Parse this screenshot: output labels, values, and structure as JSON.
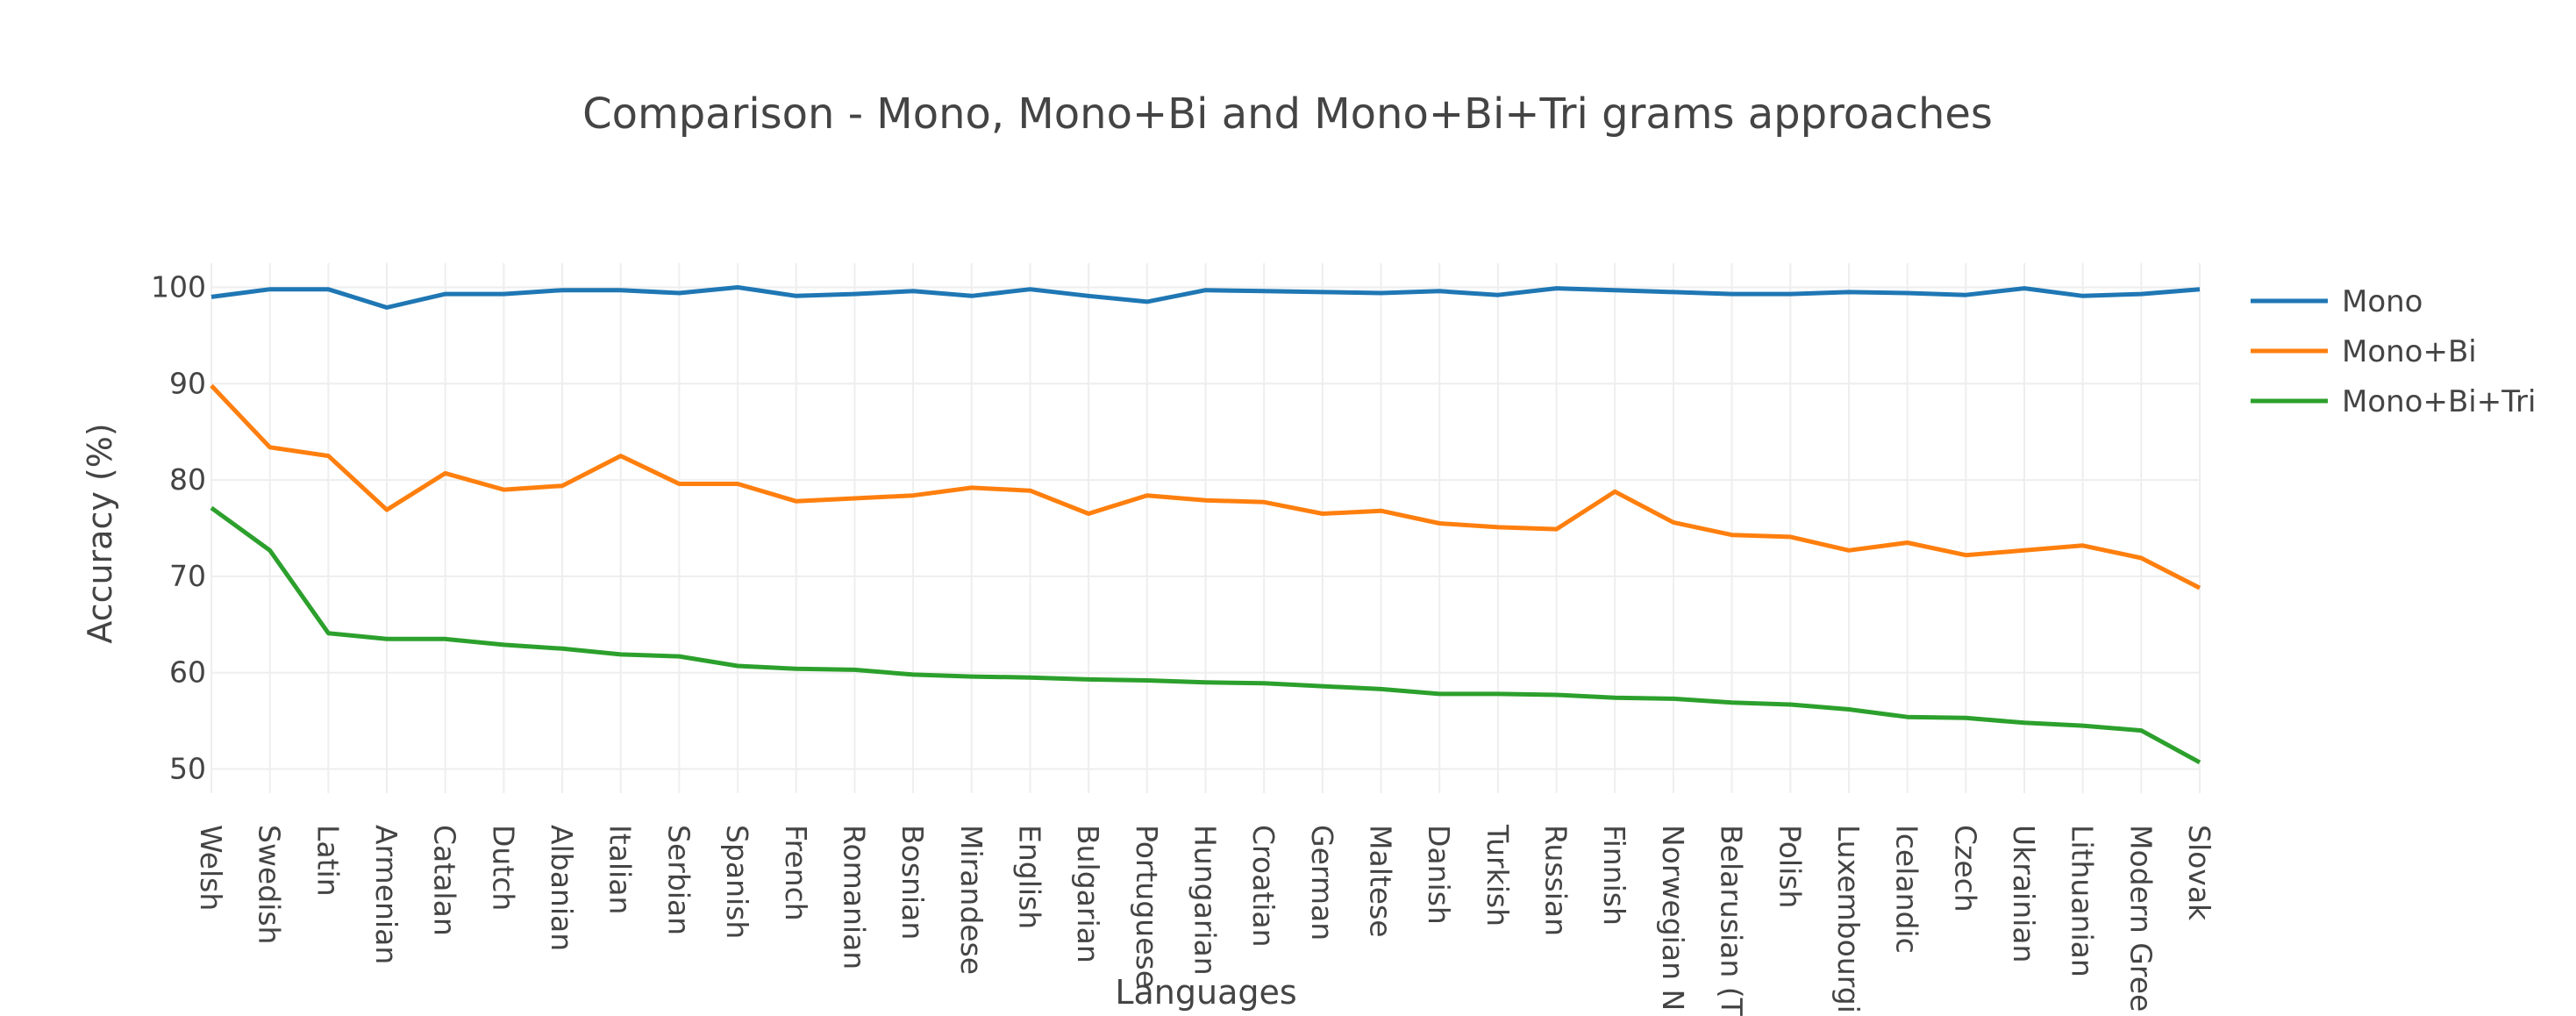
{
  "chart_data": {
    "type": "line",
    "title": "Comparison - Mono, Mono+Bi and Mono+Bi+Tri grams approaches",
    "xlabel": "Languages",
    "ylabel": "Accuracy (%)",
    "ylim": [
      47.5,
      102.5
    ],
    "yticks": [
      50,
      60,
      70,
      80,
      90,
      100
    ],
    "grid": true,
    "legend_position": "top-right",
    "categories": [
      "Welsh",
      "Swedish",
      "Latin",
      "Armenian",
      "Catalan",
      "Dutch",
      "Albanian",
      "Italian",
      "Serbian",
      "Spanish",
      "French",
      "Romanian",
      "Bosnian",
      "Mirandese",
      "English",
      "Bulgarian",
      "Portuguese",
      "Hungarian",
      "Croatian",
      "German",
      "Maltese",
      "Danish",
      "Turkish",
      "Russian",
      "Finnish",
      "Norwegian N",
      "Belarusian (T",
      "Polish",
      "Luxembourgi",
      "Icelandic",
      "Czech",
      "Ukrainian",
      "Lithuanian",
      "Modern Gree",
      "Slovak"
    ],
    "series": [
      {
        "name": "Mono",
        "color": "#1f77b4",
        "values": [
          99.0,
          99.8,
          99.8,
          97.9,
          99.3,
          99.3,
          99.7,
          99.7,
          99.4,
          100.0,
          99.1,
          99.3,
          99.6,
          99.1,
          99.8,
          99.1,
          98.5,
          99.7,
          99.6,
          99.5,
          99.4,
          99.6,
          99.2,
          99.9,
          99.7,
          99.5,
          99.3,
          99.3,
          99.5,
          99.4,
          99.2,
          99.9,
          99.1,
          99.3,
          99.8
        ]
      },
      {
        "name": "Mono+Bi",
        "color": "#ff7f0e",
        "values": [
          89.8,
          83.4,
          82.5,
          76.9,
          80.7,
          79.0,
          79.4,
          82.5,
          79.6,
          79.6,
          77.8,
          78.1,
          78.4,
          79.2,
          78.9,
          76.5,
          78.4,
          77.9,
          77.7,
          76.5,
          76.8,
          75.5,
          75.1,
          74.9,
          78.8,
          75.6,
          74.3,
          74.1,
          72.7,
          73.5,
          72.2,
          72.7,
          73.2,
          71.9,
          68.8
        ]
      },
      {
        "name": "Mono+Bi+Tri",
        "color": "#2ca02c",
        "values": [
          77.1,
          72.7,
          64.1,
          63.5,
          63.5,
          62.9,
          62.5,
          61.9,
          61.7,
          60.7,
          60.4,
          60.3,
          59.8,
          59.6,
          59.5,
          59.3,
          59.2,
          59.0,
          58.9,
          58.6,
          58.3,
          57.8,
          57.8,
          57.7,
          57.4,
          57.3,
          56.9,
          56.7,
          56.2,
          55.4,
          55.3,
          54.8,
          54.5,
          54.0,
          50.7
        ]
      }
    ]
  }
}
